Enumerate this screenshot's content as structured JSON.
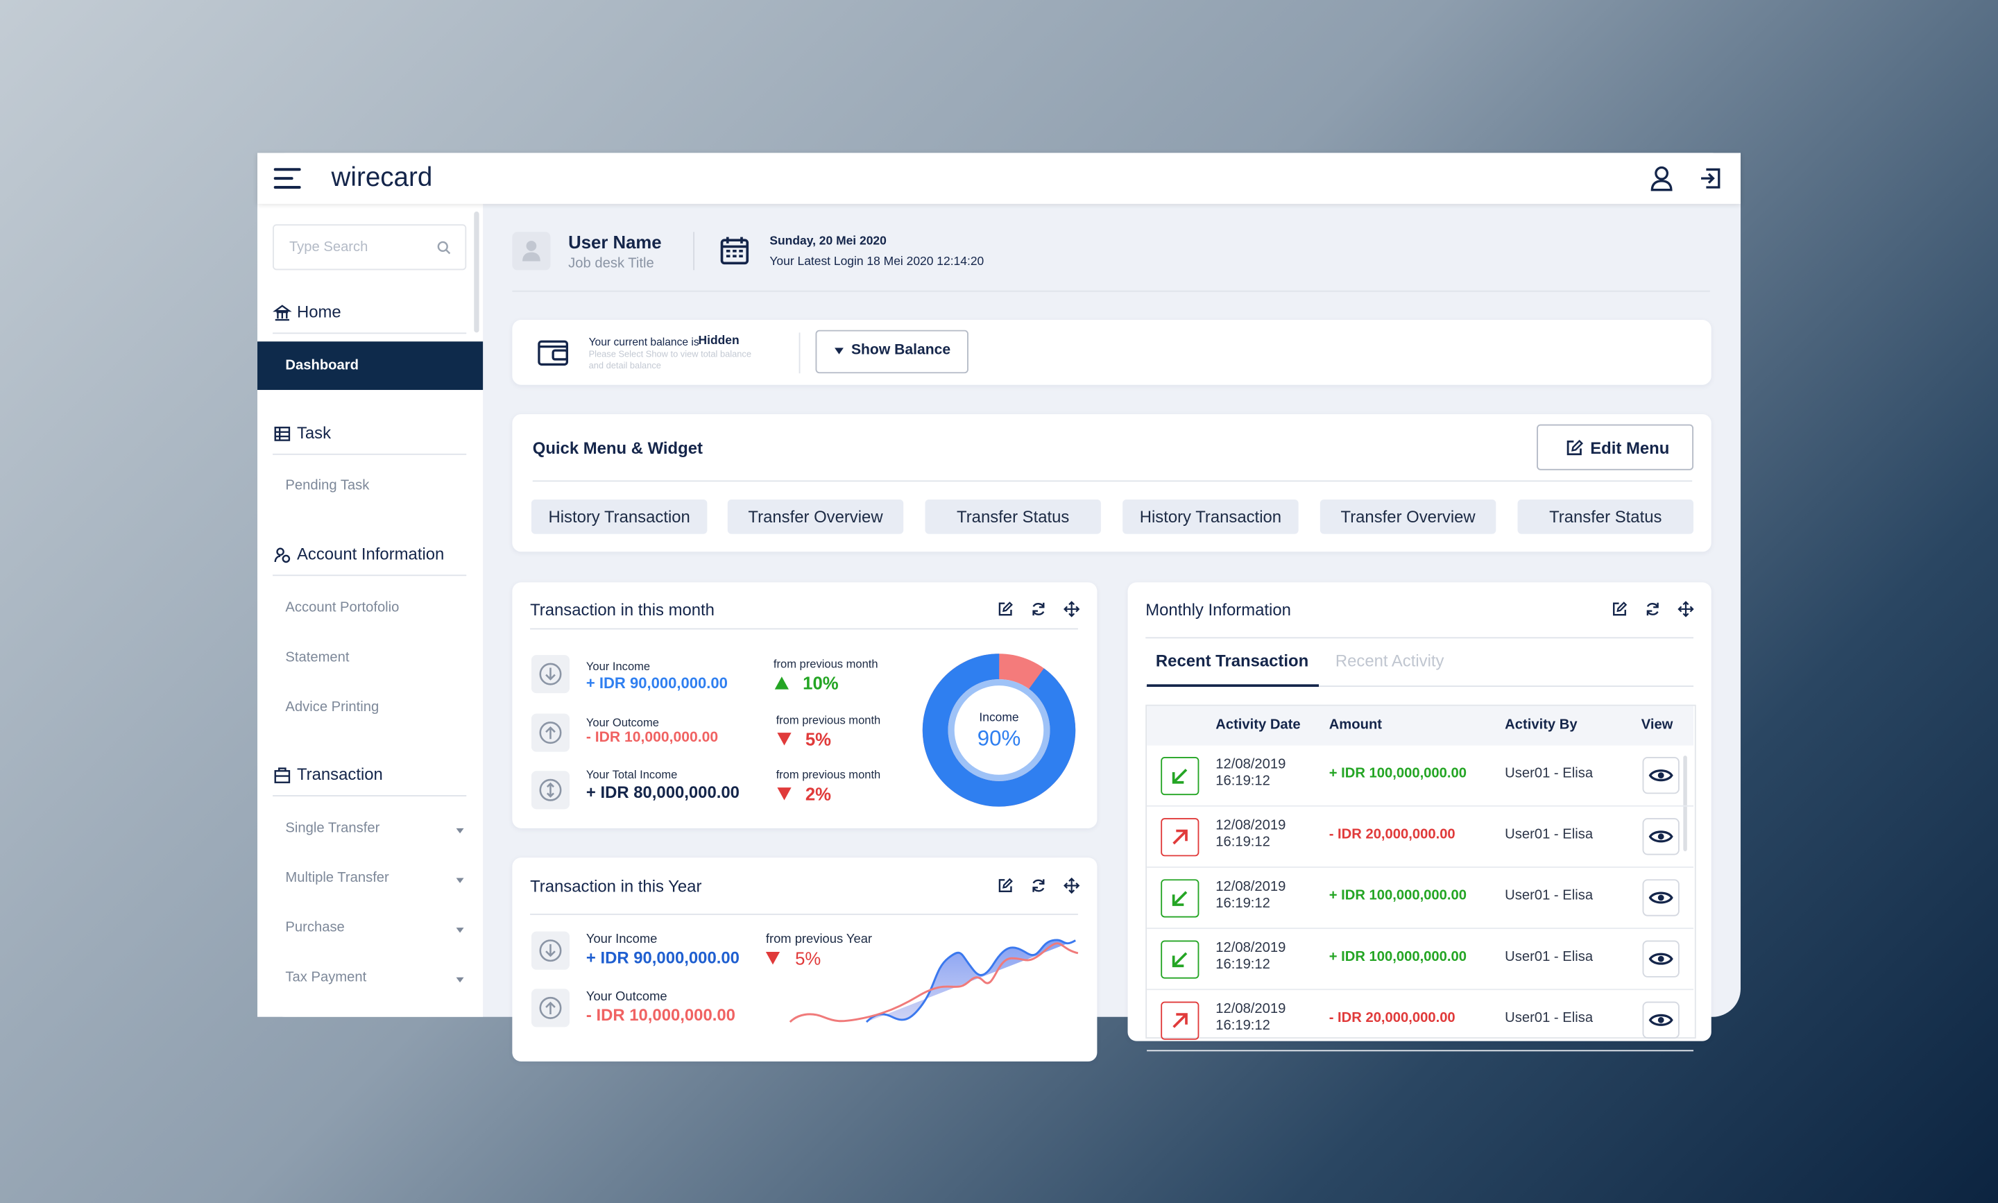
{
  "header": {
    "logo": "wirecard"
  },
  "sidebar": {
    "search_placeholder": "Type Search",
    "active": "Dashboard",
    "sections": [
      {
        "title": "Home",
        "items": [
          "Dashboard"
        ]
      },
      {
        "title": "Task",
        "items": [
          "Pending Task"
        ]
      },
      {
        "title": "Account Information",
        "items": [
          "Account Portofolio",
          "Statement",
          "Advice Printing"
        ]
      },
      {
        "title": "Transaction",
        "items": [
          "Single Transfer",
          "Multiple Transfer",
          "Purchase",
          "Tax Payment"
        ]
      }
    ]
  },
  "user": {
    "name": "User Name",
    "job": "Job desk Title",
    "date": "Sunday, 20 Mei 2020",
    "last_login": "Your Latest Login 18 Mei 2020 12:14:20"
  },
  "balance": {
    "prefix": "Your current balance is",
    "status": "Hidden",
    "hint": "Please Select Show to view total balance and detail balance",
    "button": "Show Balance"
  },
  "quick_menu": {
    "title": "Quick Menu & Widget",
    "edit": "Edit Menu",
    "items": [
      "History Transaction",
      "Transfer Overview",
      "Transfer Status",
      "History Transaction",
      "Transfer Overview",
      "Transfer Status"
    ]
  },
  "month": {
    "title": "Transaction in this month",
    "rows": [
      {
        "label": "Your Income",
        "amount": "+ IDR 90,000,000.00",
        "compare": "from previous month",
        "change": "10%"
      },
      {
        "label": "Your Outcome",
        "amount": "- IDR 10,000,000.00",
        "compare": "from previous month",
        "change": "5%"
      },
      {
        "label": "Your Total Income",
        "amount": "+ IDR 80,000,000.00",
        "compare": "from previous month",
        "change": "2%"
      }
    ],
    "donut": {
      "label": "Income",
      "value": 90,
      "value_label": "90%"
    }
  },
  "year": {
    "title": "Transaction in this Year",
    "rows": [
      {
        "label": "Your Income",
        "amount": "+ IDR 90,000,000.00",
        "compare": "from previous Year",
        "change": "5%"
      },
      {
        "label": "Your Outcome",
        "amount": "- IDR 10,000,000.00"
      }
    ]
  },
  "monthly": {
    "title": "Monthly Information",
    "tabs": [
      "Recent Transaction",
      "Recent Activity"
    ],
    "columns": [
      "Activity Date",
      "Amount",
      "Activity By",
      "View"
    ],
    "rows": [
      {
        "date": "12/08/2019 16:19:12",
        "amount": "+ IDR 100,000,000.00",
        "by": "User01 - Elisa"
      },
      {
        "date": "12/08/2019 16:19:12",
        "amount": "- IDR 20,000,000.00",
        "by": "User01 - Elisa"
      },
      {
        "date": "12/08/2019 16:19:12",
        "amount": "+ IDR 100,000,000.00",
        "by": "User01 - Elisa"
      },
      {
        "date": "12/08/2019 16:19:12",
        "amount": "+ IDR 100,000,000.00",
        "by": "User01 - Elisa"
      },
      {
        "date": "12/08/2019 16:19:12",
        "amount": "- IDR 20,000,000.00",
        "by": "User01 - Elisa"
      }
    ]
  }
}
